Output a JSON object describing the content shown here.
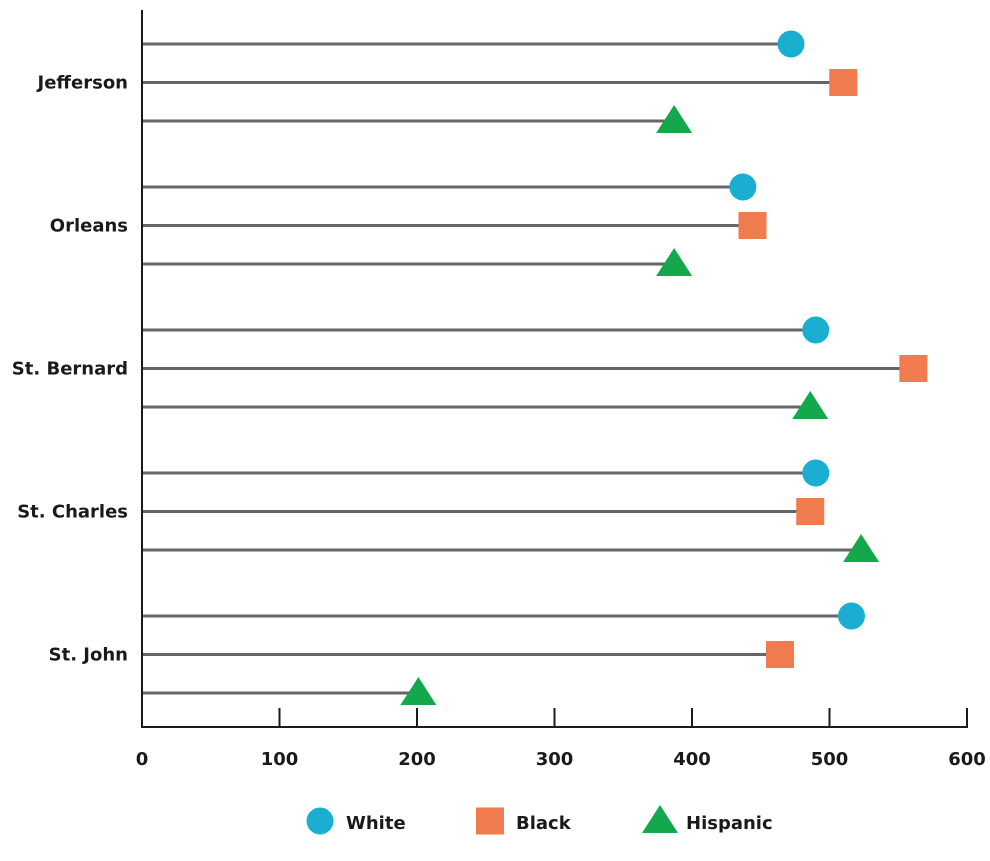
{
  "chart_data": {
    "type": "lollipop",
    "orientation": "horizontal",
    "categories": [
      "Jefferson",
      "Orleans",
      "St. Bernard",
      "St. Charles",
      "St. John"
    ],
    "series": [
      {
        "name": "White",
        "marker": "circle",
        "color": "#1aafd0",
        "values": [
          472,
          437,
          490,
          490,
          516
        ]
      },
      {
        "name": "Black",
        "marker": "square",
        "color": "#ef7b4f",
        "values": [
          510,
          444,
          561,
          486,
          464
        ]
      },
      {
        "name": "Hispanic",
        "marker": "triangle",
        "color": "#14a84c",
        "values": [
          387,
          387,
          486,
          523,
          201
        ]
      }
    ],
    "x_ticks": [
      0,
      100,
      200,
      300,
      400,
      500,
      600
    ],
    "xlim": [
      0,
      600
    ],
    "grid": false,
    "legend_position": "bottom"
  }
}
